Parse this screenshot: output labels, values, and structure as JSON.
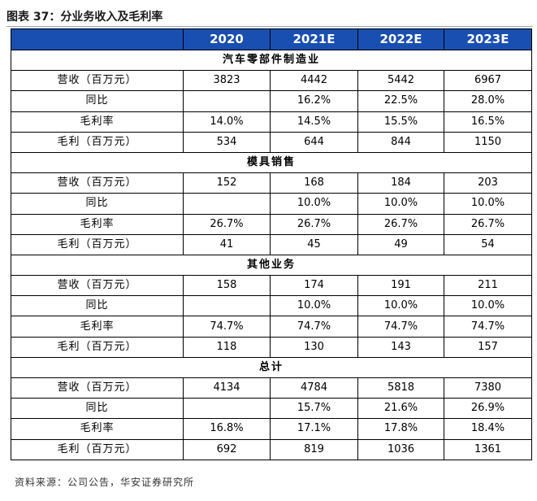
{
  "caption": "图表 37：分业务收入及毛利率",
  "table": {
    "header": [
      "",
      "2020",
      "2021E",
      "2022E",
      "2023E"
    ],
    "sections": [
      {
        "title": "汽车零部件制造业",
        "rows": [
          {
            "label": "营收（百万元）",
            "values": [
              "3823",
              "4442",
              "5442",
              "6967"
            ]
          },
          {
            "label": "同比",
            "values": [
              "",
              "16.2%",
              "22.5%",
              "28.0%"
            ]
          },
          {
            "label": "毛利率",
            "values": [
              "14.0%",
              "14.5%",
              "15.5%",
              "16.5%"
            ]
          },
          {
            "label": "毛利（百万元）",
            "values": [
              "534",
              "644",
              "844",
              "1150"
            ]
          }
        ]
      },
      {
        "title": "模具销售",
        "rows": [
          {
            "label": "营收（百万元）",
            "values": [
              "152",
              "168",
              "184",
              "203"
            ]
          },
          {
            "label": "同比",
            "values": [
              "",
              "10.0%",
              "10.0%",
              "10.0%"
            ]
          },
          {
            "label": "毛利率",
            "values": [
              "26.7%",
              "26.7%",
              "26.7%",
              "26.7%"
            ]
          },
          {
            "label": "毛利（百万元）",
            "values": [
              "41",
              "45",
              "49",
              "54"
            ]
          }
        ]
      },
      {
        "title": "其他业务",
        "rows": [
          {
            "label": "营收（百万元）",
            "values": [
              "158",
              "174",
              "191",
              "211"
            ]
          },
          {
            "label": "同比",
            "values": [
              "",
              "10.0%",
              "10.0%",
              "10.0%"
            ]
          },
          {
            "label": "毛利率",
            "values": [
              "74.7%",
              "74.7%",
              "74.7%",
              "74.7%"
            ]
          },
          {
            "label": "毛利（百万元）",
            "values": [
              "118",
              "130",
              "143",
              "157"
            ]
          }
        ]
      },
      {
        "title": "总计",
        "rows": [
          {
            "label": "营收（百万元）",
            "values": [
              "4134",
              "4784",
              "5818",
              "7380"
            ]
          },
          {
            "label": "同比",
            "values": [
              "",
              "15.7%",
              "21.6%",
              "26.9%"
            ]
          },
          {
            "label": "毛利率",
            "values": [
              "16.8%",
              "17.1%",
              "17.8%",
              "18.4%"
            ]
          },
          {
            "label": "毛利（百万元）",
            "values": [
              "692",
              "819",
              "1036",
              "1361"
            ]
          }
        ]
      }
    ]
  },
  "source": "资料来源：公司公告，华安证券研究所",
  "colors": {
    "header_bg": "#1a4fb2",
    "header_text": "#ffffff"
  }
}
